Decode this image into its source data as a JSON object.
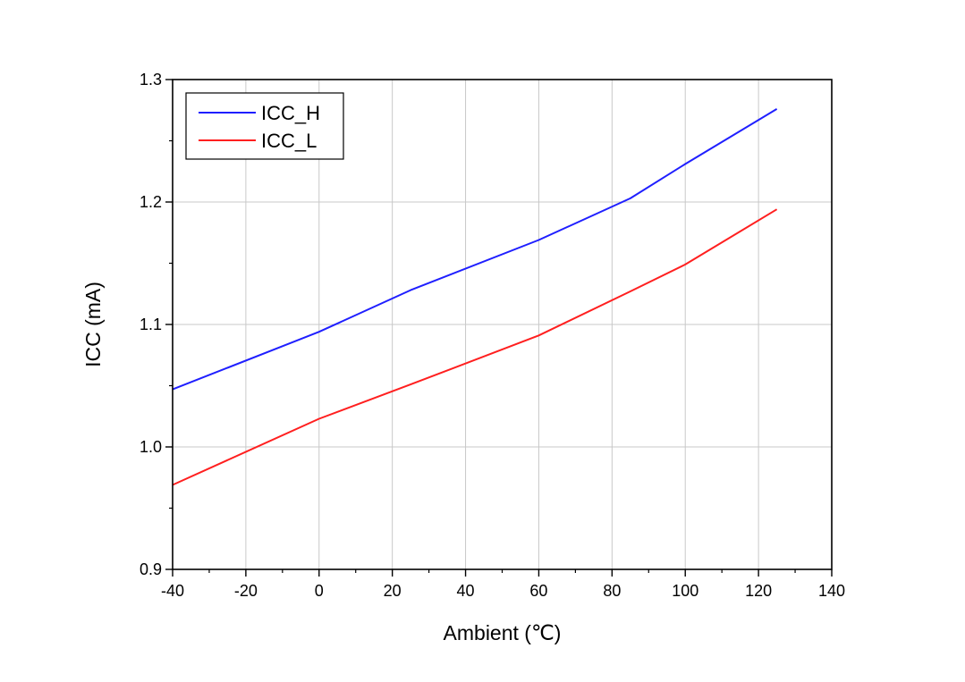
{
  "chart_data": {
    "type": "line",
    "xlabel": "Ambient (℃)",
    "ylabel": "ICC (mA)",
    "xlim": [
      -40,
      140
    ],
    "ylim": [
      0.9,
      1.3
    ],
    "xticks": [
      -40,
      -20,
      0,
      20,
      40,
      60,
      80,
      100,
      120,
      140
    ],
    "yticks": [
      0.9,
      1.0,
      1.1,
      1.2,
      1.3
    ],
    "xtick_labels": [
      "-40",
      "-20",
      "0",
      "20",
      "40",
      "60",
      "80",
      "100",
      "120",
      "140"
    ],
    "ytick_labels": [
      "0.9",
      "1.0",
      "1.1",
      "1.2",
      "1.3"
    ],
    "grid": true,
    "legend_position": "top-left",
    "series": [
      {
        "name": "ICC_H",
        "color": "#1f1fff",
        "x": [
          -40,
          0,
          25,
          60,
          85,
          100,
          125
        ],
        "y": [
          1.047,
          1.094,
          1.128,
          1.169,
          1.203,
          1.231,
          1.276
        ]
      },
      {
        "name": "ICC_L",
        "color": "#ff1f1f",
        "x": [
          -40,
          0,
          25,
          60,
          85,
          100,
          125
        ],
        "y": [
          0.969,
          1.023,
          1.051,
          1.091,
          1.127,
          1.149,
          1.194
        ]
      }
    ]
  }
}
